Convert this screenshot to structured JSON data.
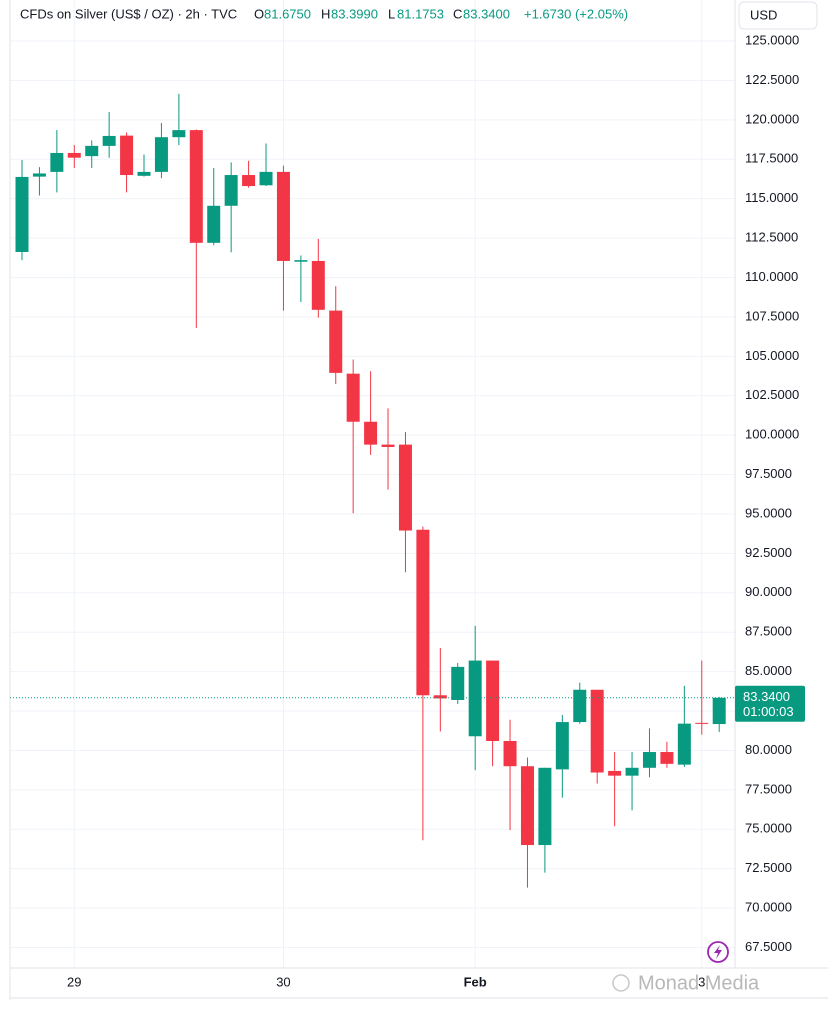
{
  "chart_data": {
    "type": "candlestick",
    "header": {
      "title": "CFDs on Silver (US$ / OZ) · 2h · TVC",
      "o_label": "O",
      "o": "81.6750",
      "h_label": "H",
      "h": "83.3990",
      "l_label": "L",
      "l": "81.1753",
      "c_label": "C",
      "c": "83.3400",
      "change": "+1.6730 (+2.05%)"
    },
    "currency": "USD",
    "watermark": "Monad Media",
    "categories": [
      null,
      null,
      null,
      "29",
      null,
      null,
      null,
      null,
      null,
      null,
      null,
      null,
      null,
      null,
      null,
      "30",
      null,
      null,
      null,
      null,
      null,
      null,
      null,
      null,
      null,
      null,
      "Feb",
      null,
      null,
      null,
      null,
      null,
      null,
      null,
      null,
      null,
      null,
      null,
      null,
      "3",
      null
    ],
    "open": [
      111.62,
      116.4,
      116.7,
      117.9,
      117.7,
      118.35,
      119.0,
      116.45,
      116.7,
      118.9,
      119.35,
      112.2,
      114.55,
      116.5,
      115.85,
      116.7,
      111.0,
      111.05,
      107.9,
      103.9,
      100.85,
      99.4,
      99.4,
      94.0,
      83.5,
      83.2,
      80.9,
      85.7,
      80.6,
      79.0,
      74.0,
      78.8,
      81.8,
      83.85,
      78.7,
      78.4,
      78.9,
      79.9,
      79.1,
      81.75,
      81.675
    ],
    "high": [
      117.45,
      117.0,
      119.35,
      118.4,
      118.7,
      120.5,
      119.2,
      117.8,
      119.8,
      121.65,
      119.4,
      116.95,
      117.3,
      117.4,
      118.5,
      117.1,
      111.4,
      112.45,
      109.45,
      104.8,
      104.05,
      101.7,
      100.2,
      94.2,
      86.5,
      85.55,
      87.9,
      85.7,
      81.95,
      79.55,
      78.9,
      82.25,
      84.3,
      83.85,
      79.9,
      79.9,
      81.4,
      80.55,
      84.1,
      85.7,
      83.399
    ],
    "low": [
      111.1,
      115.2,
      115.4,
      116.95,
      116.95,
      117.6,
      115.4,
      116.4,
      116.3,
      118.4,
      106.8,
      112.05,
      111.6,
      115.7,
      115.8,
      107.9,
      108.45,
      107.45,
      103.25,
      95.05,
      98.75,
      96.55,
      91.3,
      74.3,
      81.2,
      82.95,
      78.75,
      79.0,
      74.95,
      71.3,
      72.25,
      77.0,
      81.7,
      77.9,
      75.2,
      76.2,
      78.3,
      78.9,
      78.95,
      81.0,
      81.1753
    ],
    "close": [
      116.38,
      116.6,
      117.9,
      117.6,
      118.35,
      118.98,
      116.5,
      116.7,
      118.9,
      119.35,
      112.2,
      114.55,
      116.5,
      115.8,
      116.7,
      111.05,
      111.1,
      107.95,
      103.95,
      100.85,
      99.4,
      99.25,
      93.95,
      83.5,
      83.3,
      85.3,
      85.7,
      80.6,
      79.0,
      74.0,
      78.9,
      81.8,
      83.85,
      78.6,
      78.4,
      78.9,
      79.9,
      79.15,
      81.7,
      81.7,
      83.34
    ],
    "up_color": "#089981",
    "down_color": "#f23645",
    "last_price": {
      "value": 83.34,
      "label": "83.3400",
      "countdown": "01:00:03"
    },
    "ylim": [
      66.2,
      125.7
    ],
    "yticks": [
      {
        "value": 67.5,
        "label": "67.5000"
      },
      {
        "value": 70,
        "label": "70.0000"
      },
      {
        "value": 72.5,
        "label": "72.5000"
      },
      {
        "value": 75,
        "label": "75.0000"
      },
      {
        "value": 77.5,
        "label": "77.5000"
      },
      {
        "value": 80,
        "label": "80.0000"
      },
      {
        "value": 82.5,
        "label": "82.5000"
      },
      {
        "value": 85,
        "label": "85.0000"
      },
      {
        "value": 87.5,
        "label": "87.5000"
      },
      {
        "value": 90,
        "label": "90.0000"
      },
      {
        "value": 92.5,
        "label": "92.5000"
      },
      {
        "value": 95,
        "label": "95.0000"
      },
      {
        "value": 97.5,
        "label": "97.5000"
      },
      {
        "value": 100,
        "label": "100.0000"
      },
      {
        "value": 102.5,
        "label": "102.5000"
      },
      {
        "value": 105,
        "label": "105.0000"
      },
      {
        "value": 107.5,
        "label": "107.5000"
      },
      {
        "value": 110,
        "label": "110.0000"
      },
      {
        "value": 112.5,
        "label": "112.5000"
      },
      {
        "value": 115,
        "label": "115.0000"
      },
      {
        "value": 117.5,
        "label": "117.5000"
      },
      {
        "value": 120,
        "label": "120.0000"
      },
      {
        "value": 122.5,
        "label": "122.5000"
      },
      {
        "value": 125,
        "label": "125.0000"
      }
    ],
    "grid": true
  }
}
